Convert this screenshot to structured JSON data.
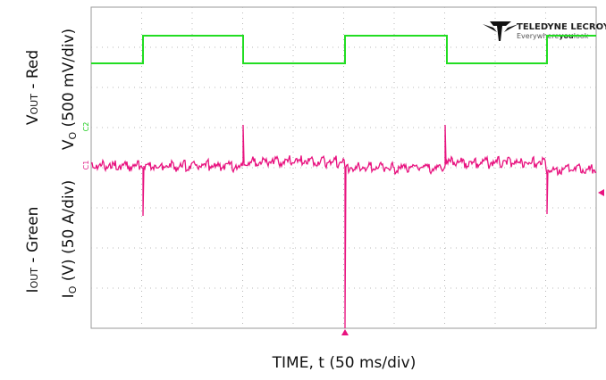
{
  "labels": {
    "vout": [
      "V",
      "OUT",
      " - Red"
    ],
    "vo": [
      "V",
      "O",
      " (500 mV/div)"
    ],
    "iout": [
      "I",
      "OUT",
      " - Green"
    ],
    "io": [
      "I",
      "O",
      " (V) (50 A/div)"
    ],
    "time": "TIME, t (50 ms/div)"
  },
  "logo": {
    "name": "TELEDYNE LECROY",
    "tagline": [
      "Everywhere",
      "you",
      "look"
    ]
  },
  "channels": [
    "C2",
    "C1"
  ]
}
